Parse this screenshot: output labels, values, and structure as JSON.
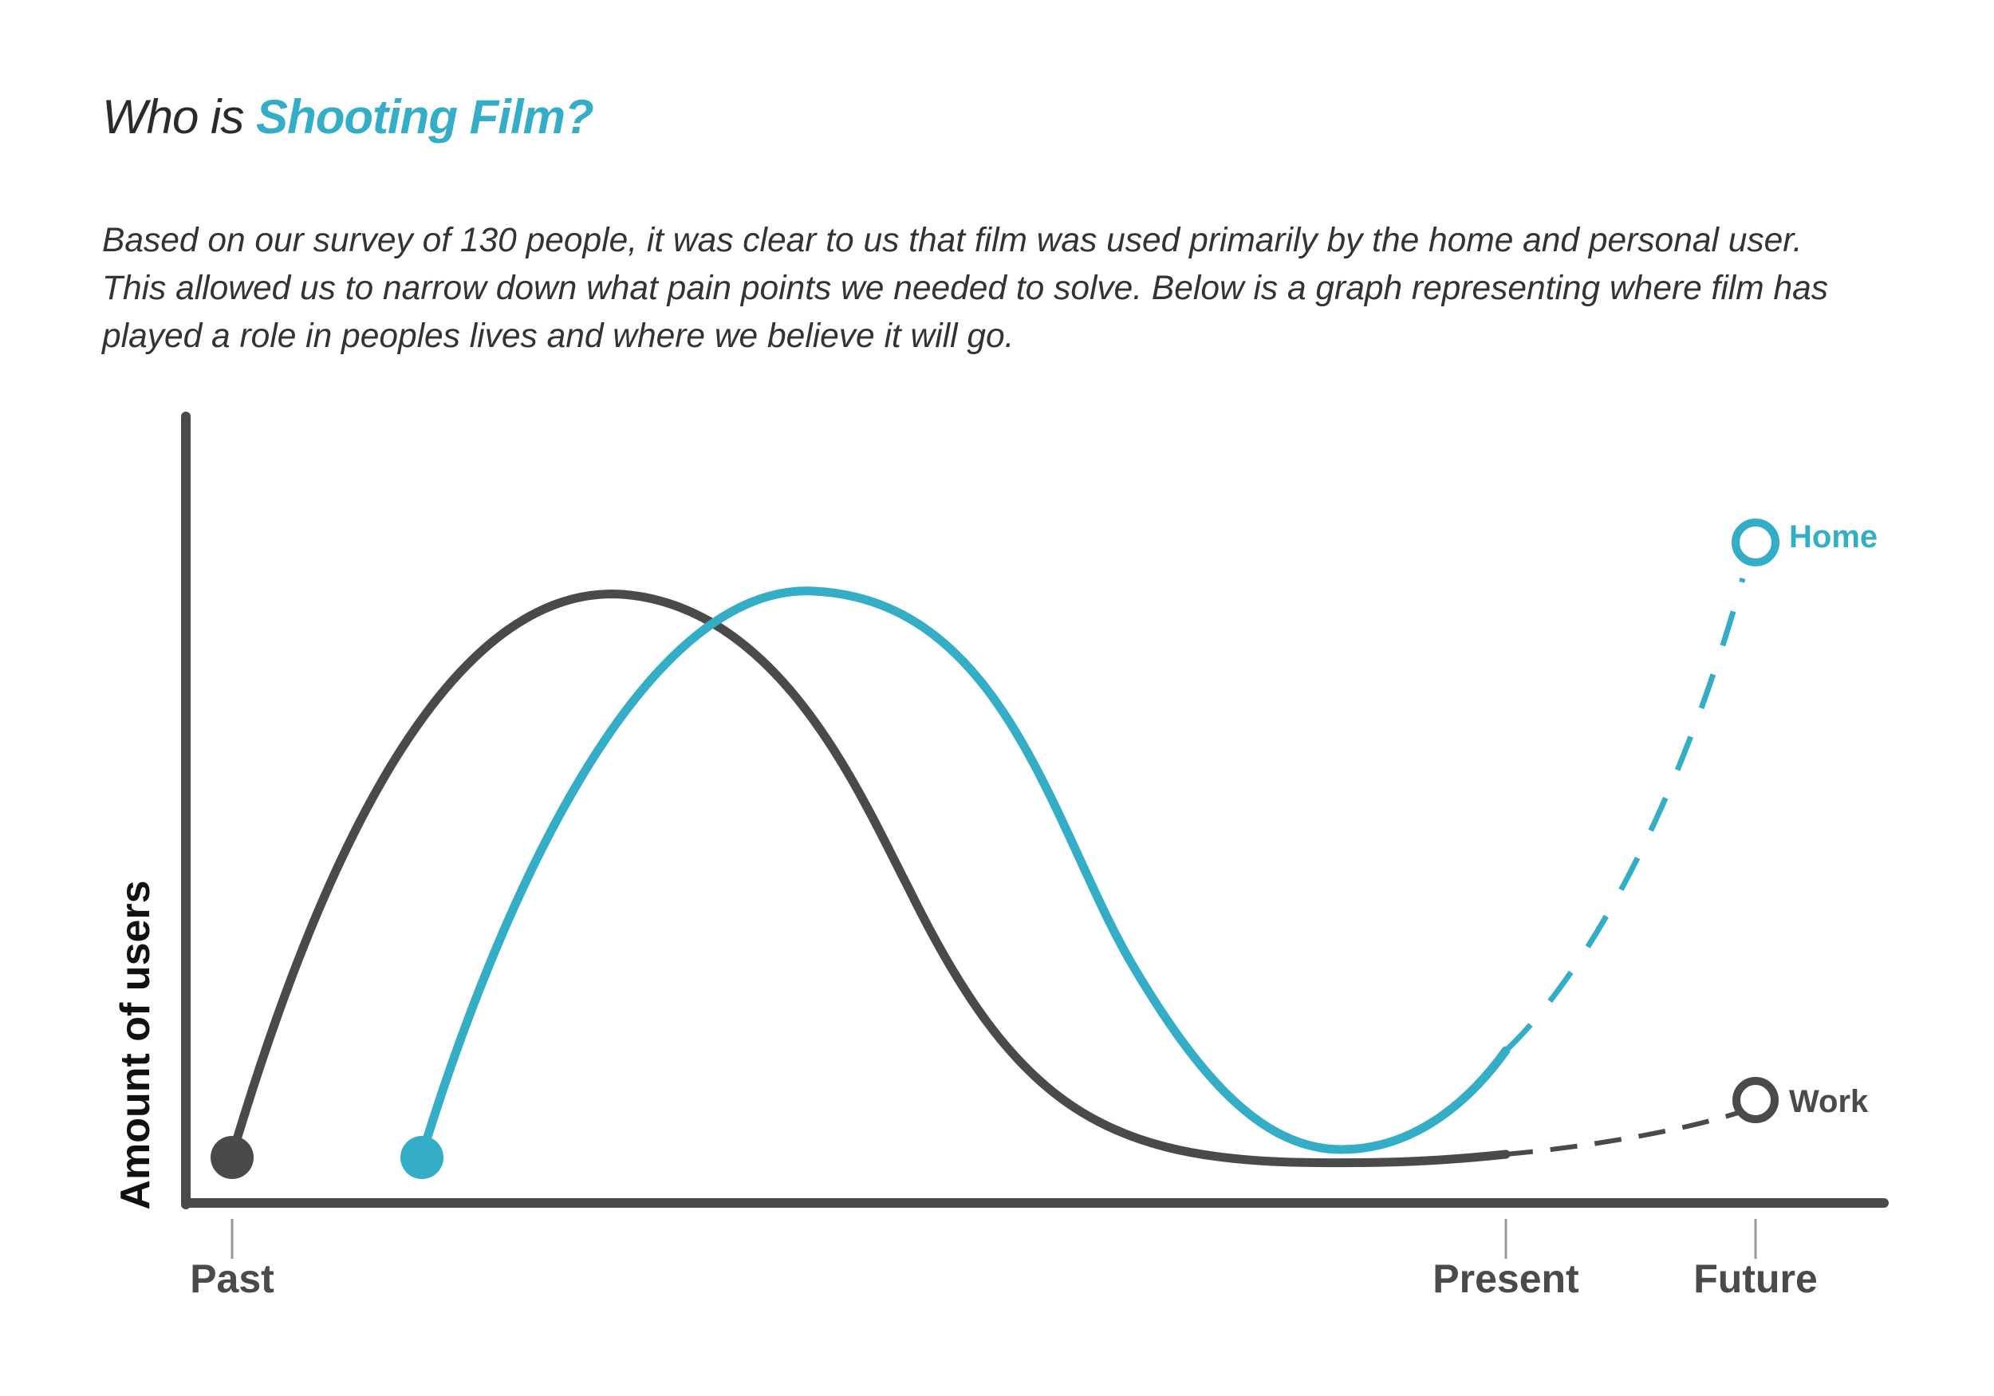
{
  "heading": {
    "prefix": "Who is ",
    "highlight": "Shooting Film?"
  },
  "intro_lines": [
    "Based on our survey of 130 people, it was clear to us that film was used primarily by the home and personal user.",
    "This allowed us to narrow down what pain points we needed to solve. Below is a graph representing where film has",
    "played a role in peoples lives and where we believe it will go."
  ],
  "colors": {
    "work": "#4a4a4a",
    "home": "#33aec6",
    "axis": "#4a4a4a",
    "text": "#333333"
  },
  "chart_data": {
    "type": "line",
    "title": "",
    "ylabel": "Amount of users",
    "xlabel": "",
    "x_ticks": [
      "Past",
      "Present",
      "Future"
    ],
    "grid": false,
    "series": [
      {
        "name": "Work",
        "color": "#4a4a4a",
        "points": [
          [
            0,
            0.05
          ],
          [
            0.22,
            0.7
          ],
          [
            0.45,
            0.4
          ],
          [
            0.62,
            0.1
          ],
          [
            0.8,
            0.045
          ],
          [
            1.0,
            0.065
          ]
        ],
        "projection": [
          [
            1.0,
            0.065
          ],
          [
            1.1,
            0.09
          ],
          [
            1.2,
            0.14
          ]
        ]
      },
      {
        "name": "Home",
        "color": "#33aec6",
        "points": [
          [
            0.15,
            0.05
          ],
          [
            0.47,
            0.71
          ],
          [
            0.8,
            0.065
          ],
          [
            1.0,
            0.19
          ]
        ],
        "projection": [
          [
            1.0,
            0.19
          ],
          [
            1.1,
            0.55
          ],
          [
            1.2,
            0.86
          ]
        ]
      }
    ]
  }
}
